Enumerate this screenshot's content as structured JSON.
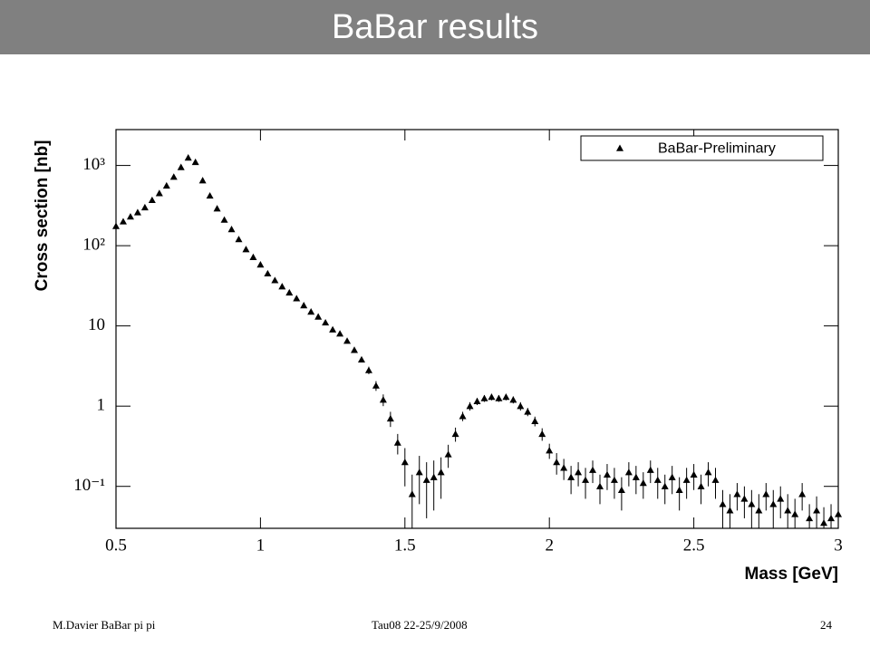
{
  "slide": {
    "title": "BaBar results",
    "footer_left": "M.Davier    BaBar pi pi",
    "footer_center": "Tau08  22-25/9/2008",
    "page_number": "24"
  },
  "chart_data": {
    "type": "scatter",
    "y_scale": "log",
    "legend": "upper right",
    "x_label": "Mass   [GeV]",
    "y_label": "Cross section   [nb]",
    "xlim": [
      0.5,
      3
    ],
    "xticks": [
      0.5,
      1,
      1.5,
      2,
      2.5,
      3
    ],
    "ylim": [
      0.03,
      2800
    ],
    "yticks": [
      {
        "value": 0.1,
        "label": "10⁻¹"
      },
      1,
      {
        "value": 10,
        "label": "10"
      },
      {
        "value": 100,
        "label": "10²"
      },
      {
        "value": 1000,
        "label": "10³"
      }
    ],
    "x": [
      0.5,
      0.525,
      0.55,
      0.575,
      0.6,
      0.625,
      0.65,
      0.675,
      0.7,
      0.725,
      0.75,
      0.775,
      0.8,
      0.825,
      0.85,
      0.875,
      0.9,
      0.925,
      0.95,
      0.975,
      1.0,
      1.025,
      1.05,
      1.075,
      1.1,
      1.125,
      1.15,
      1.175,
      1.2,
      1.225,
      1.25,
      1.275,
      1.3,
      1.325,
      1.35,
      1.375,
      1.4,
      1.425,
      1.45,
      1.475,
      1.5,
      1.525,
      1.55,
      1.575,
      1.6,
      1.625,
      1.65,
      1.675,
      1.7,
      1.725,
      1.75,
      1.775,
      1.8,
      1.825,
      1.85,
      1.875,
      1.9,
      1.925,
      1.95,
      1.975,
      2.0,
      2.025,
      2.05,
      2.075,
      2.1,
      2.125,
      2.15,
      2.175,
      2.2,
      2.225,
      2.25,
      2.275,
      2.3,
      2.325,
      2.35,
      2.375,
      2.4,
      2.425,
      2.45,
      2.475,
      2.5,
      2.525,
      2.55,
      2.575,
      2.6,
      2.625,
      2.65,
      2.675,
      2.7,
      2.725,
      2.75,
      2.775,
      2.8,
      2.825,
      2.85,
      2.875,
      2.9,
      2.925,
      2.95,
      2.975,
      3.0
    ],
    "series": [
      {
        "name": "BaBar-Preliminary",
        "color": "#000000",
        "values": [
          175,
          200,
          230,
          260,
          300,
          370,
          450,
          560,
          720,
          950,
          1250,
          1100,
          650,
          420,
          290,
          210,
          160,
          120,
          90,
          72,
          58,
          45,
          37,
          31,
          26,
          22,
          18,
          15,
          13,
          11,
          9,
          8,
          6.5,
          5,
          3.8,
          2.8,
          1.8,
          1.2,
          0.7,
          0.35,
          0.2,
          0.08,
          0.15,
          0.12,
          0.13,
          0.15,
          0.25,
          0.45,
          0.75,
          1.0,
          1.15,
          1.25,
          1.3,
          1.25,
          1.3,
          1.2,
          1.0,
          0.85,
          0.65,
          0.45,
          0.28,
          0.2,
          0.17,
          0.13,
          0.15,
          0.12,
          0.16,
          0.1,
          0.14,
          0.12,
          0.09,
          0.15,
          0.13,
          0.11,
          0.16,
          0.12,
          0.1,
          0.13,
          0.09,
          0.12,
          0.14,
          0.1,
          0.15,
          0.12,
          0.06,
          0.05,
          0.08,
          0.07,
          0.06,
          0.05,
          0.08,
          0.06,
          0.07,
          0.05,
          0.045,
          0.08,
          0.04,
          0.05,
          0.035,
          0.04,
          0.045
        ],
        "errors": [
          5,
          6,
          7,
          8,
          9,
          11,
          13,
          17,
          22,
          29,
          38,
          33,
          20,
          13,
          9,
          6,
          5,
          4,
          3,
          2.2,
          1.7,
          1.4,
          1.1,
          0.9,
          0.8,
          0.7,
          0.5,
          0.5,
          0.4,
          0.4,
          0.3,
          0.3,
          0.3,
          0.3,
          0.3,
          0.3,
          0.25,
          0.2,
          0.15,
          0.1,
          0.1,
          0.06,
          0.09,
          0.08,
          0.08,
          0.08,
          0.08,
          0.09,
          0.1,
          0.12,
          0.12,
          0.12,
          0.12,
          0.12,
          0.12,
          0.12,
          0.12,
          0.1,
          0.09,
          0.08,
          0.06,
          0.06,
          0.05,
          0.05,
          0.05,
          0.05,
          0.05,
          0.04,
          0.05,
          0.05,
          0.04,
          0.05,
          0.05,
          0.04,
          0.05,
          0.05,
          0.04,
          0.05,
          0.04,
          0.05,
          0.05,
          0.04,
          0.05,
          0.05,
          0.03,
          0.03,
          0.03,
          0.03,
          0.03,
          0.03,
          0.03,
          0.03,
          0.03,
          0.03,
          0.025,
          0.03,
          0.02,
          0.025,
          0.02,
          0.02,
          0.02
        ]
      }
    ]
  }
}
